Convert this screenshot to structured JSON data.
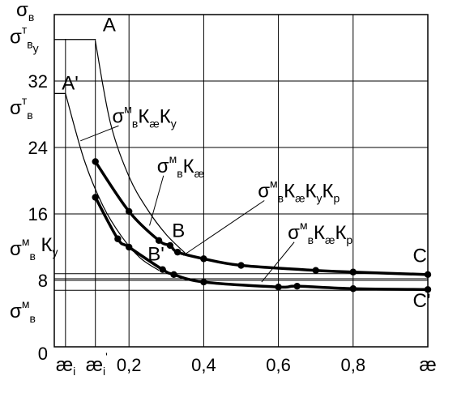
{
  "chart_data": {
    "type": "line",
    "xlim": [
      0,
      1.0
    ],
    "ylim": [
      0,
      40
    ],
    "grid": true,
    "x_ticks": [
      {
        "v": 0.2,
        "label": "0,2"
      },
      {
        "v": 0.4,
        "label": "0,4"
      },
      {
        "v": 0.6,
        "label": "0,6"
      },
      {
        "v": 0.8,
        "label": "0,8"
      }
    ],
    "y_ticks": [
      {
        "v": 8,
        "label": "8"
      },
      {
        "v": 16,
        "label": "16"
      },
      {
        "v": 24,
        "label": "24"
      },
      {
        "v": 32,
        "label": "32"
      }
    ],
    "origin_label": "0",
    "x_axis_label": "æ",
    "y_axis_label": "σ",
    "y_axis_label_sub": "в",
    "x_special_ticks": [
      {
        "v": 0.03,
        "text": "æ",
        "sub": "i",
        "sup": ""
      },
      {
        "v": 0.11,
        "text": "æ",
        "sub": "i",
        "sup": "'"
      }
    ],
    "thin_curves": [
      {
        "name": "σвM Кæ Кy",
        "points": [
          [
            0.11,
            36.8
          ],
          [
            0.15,
            27.0
          ],
          [
            0.2,
            20.5
          ],
          [
            0.25,
            16.5
          ],
          [
            0.3,
            13.5
          ],
          [
            0.35,
            11.3
          ]
        ]
      },
      {
        "name": "σвM Кæ",
        "points": [
          [
            0.03,
            30.5
          ],
          [
            0.08,
            22.5
          ],
          [
            0.13,
            17.0
          ],
          [
            0.18,
            13.3
          ],
          [
            0.23,
            10.7
          ],
          [
            0.28,
            9.2
          ]
        ]
      }
    ],
    "thick_series": [
      {
        "name": "σвM Кæ Кy Кр",
        "points": [
          [
            0.11,
            22.3
          ],
          [
            0.2,
            16.3
          ],
          [
            0.28,
            12.8
          ],
          [
            0.31,
            12.2
          ],
          [
            0.33,
            11.4
          ],
          [
            0.4,
            10.6
          ],
          [
            0.5,
            9.8
          ],
          [
            0.7,
            9.2
          ],
          [
            0.8,
            9.0
          ],
          [
            1.0,
            8.7
          ]
        ]
      },
      {
        "name": "σвM Кæ Кр",
        "points": [
          [
            0.11,
            18.0
          ],
          [
            0.17,
            13.0
          ],
          [
            0.2,
            12.0
          ],
          [
            0.29,
            9.3
          ],
          [
            0.32,
            8.7
          ],
          [
            0.4,
            7.8
          ],
          [
            0.6,
            7.2
          ],
          [
            0.65,
            7.3
          ],
          [
            0.8,
            7.0
          ],
          [
            1.0,
            6.9
          ]
        ]
      }
    ],
    "h_lines": [
      {
        "kind": "horizontal",
        "y": 8.8
      },
      {
        "kind": "horizontal",
        "y": 8.2
      },
      {
        "kind": "horizontal",
        "y": 6.8
      }
    ],
    "plateaus": [
      {
        "kind": "plateau",
        "y": 37.0,
        "x1": 0.0,
        "x2": 0.11
      },
      {
        "kind": "plateau",
        "y": 30.5,
        "x1": 0.0,
        "x2": 0.03
      }
    ],
    "y_annotations": [
      {
        "text": "σ",
        "sub": "в",
        "sup": "т",
        "sub2": "y",
        "y": 37.5
      },
      {
        "text": "σ",
        "sub": "в",
        "sup": "т",
        "sub2": "",
        "y": 29.0
      },
      {
        "text": "σ",
        "sub": "в",
        "sup": "м",
        "sub2": "",
        "extra": "К",
        "extra_sub": "y",
        "y": 12.0
      },
      {
        "text": "σ",
        "sub": "в",
        "sup": "м",
        "sub2": "",
        "y": 4.5
      }
    ],
    "point_letters": [
      {
        "text": "A",
        "x": 0.13,
        "y": 38.0
      },
      {
        "text": "A'",
        "x": 0.02,
        "y": 31.0
      },
      {
        "text": "B",
        "x": 0.315,
        "y": 13.2
      },
      {
        "text": "B'",
        "x": 0.25,
        "y": 10.4
      },
      {
        "text": "C",
        "x": 0.96,
        "y": 10.2
      },
      {
        "text": "C'",
        "x": 0.96,
        "y": 4.8
      }
    ],
    "curve_labels": [
      {
        "text": "σ",
        "sup": "м",
        "sub": "в",
        "rest": "К",
        "parts": [
          {
            "t": "К",
            "s": "æ"
          },
          {
            "t": "К",
            "s": "y"
          }
        ],
        "x": 0.155,
        "y": 27.0,
        "tx": 0.07,
        "ty": 24.8
      },
      {
        "text": "σ",
        "sup": "м",
        "sub": "в",
        "rest": "К",
        "parts": [
          {
            "t": "К",
            "s": "æ"
          }
        ],
        "x": 0.275,
        "y": 21.0,
        "tx": 0.255,
        "ty": 14.6
      },
      {
        "text": "σ",
        "sup": "м",
        "sub": "в",
        "rest": "К",
        "parts": [
          {
            "t": "К",
            "s": "æ"
          },
          {
            "t": "К",
            "s": "y"
          },
          {
            "t": "К",
            "s": "р"
          }
        ],
        "x": 0.545,
        "y": 18.0,
        "tx": 0.345,
        "ty": 11.0
      },
      {
        "text": "σ",
        "sup": "м",
        "sub": "в",
        "rest": "К",
        "parts": [
          {
            "t": "К",
            "s": "æ"
          },
          {
            "t": "К",
            "s": "р"
          }
        ],
        "x": 0.625,
        "y": 13.0,
        "tx": 0.555,
        "ty": 7.8
      }
    ]
  }
}
